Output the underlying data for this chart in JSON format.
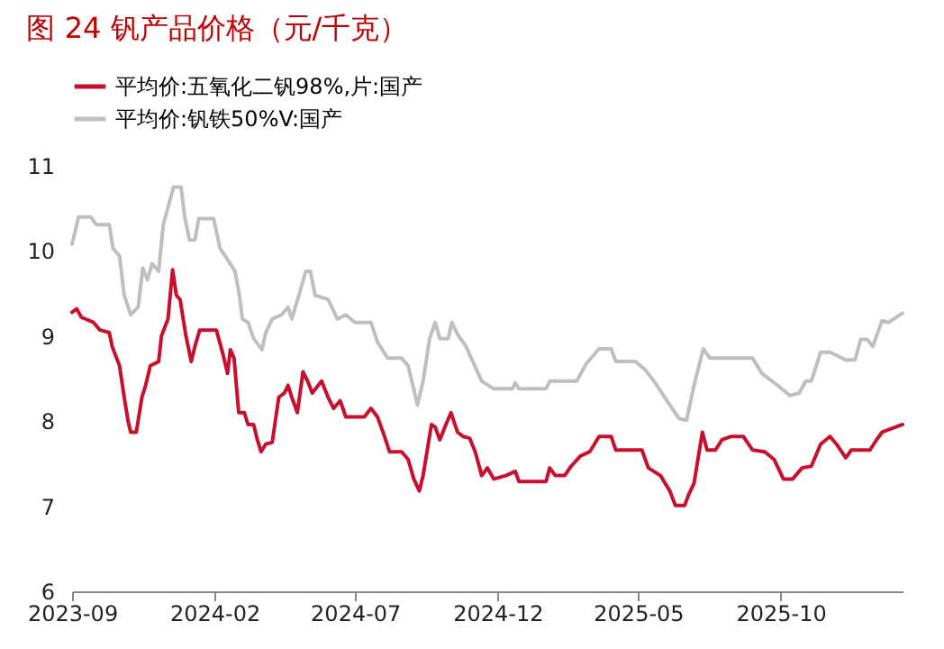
{
  "chart_data": {
    "type": "line",
    "title": "图 24 钒产品价格（元/千克）",
    "xlim": [
      "2023-09-01",
      "2026-02-09"
    ],
    "xticks": [
      "2023-09",
      "2024-02",
      "2024-07",
      "2024-12",
      "2025-05",
      "2025-10"
    ],
    "ylim": [
      6,
      11
    ],
    "yticks": [
      6,
      7,
      8,
      9,
      10,
      11
    ],
    "grid": false,
    "legend": "top",
    "marker": "none",
    "line_style": "solid",
    "series": [
      {
        "name": "平均价:五氧化二钒98%,片:国产",
        "color": "#c8102e",
        "x": [
          "2023-09-01",
          "2023-09-06",
          "2023-09-11",
          "2023-09-24",
          "2023-10-01",
          "2023-10-11",
          "2023-10-14",
          "2023-10-22",
          "2023-10-27",
          "2023-10-31",
          "2023-11-03",
          "2023-11-09",
          "2023-11-15",
          "2023-11-19",
          "2023-11-24",
          "2023-12-03",
          "2023-12-06",
          "2023-12-13",
          "2023-12-18",
          "2023-12-22",
          "2023-12-26",
          "2024-01-01",
          "2024-01-07",
          "2024-01-11",
          "2024-01-16",
          "2024-02-03",
          "2024-02-10",
          "2024-02-15",
          "2024-02-18",
          "2024-02-22",
          "2024-02-27",
          "2024-03-04",
          "2024-03-08",
          "2024-03-14",
          "2024-03-18",
          "2024-03-22",
          "2024-03-27",
          "2024-04-03",
          "2024-04-10",
          "2024-04-16",
          "2024-04-20",
          "2024-04-24",
          "2024-04-30",
          "2024-05-06",
          "2024-05-11",
          "2024-05-16",
          "2024-05-26",
          "2024-06-02",
          "2024-06-08",
          "2024-06-15",
          "2024-06-21",
          "2024-07-11",
          "2024-07-18",
          "2024-07-25",
          "2024-07-31",
          "2024-08-07",
          "2024-08-20",
          "2024-08-27",
          "2024-09-02",
          "2024-09-08",
          "2024-09-12",
          "2024-09-21",
          "2024-09-25",
          "2024-09-30",
          "2024-10-05",
          "2024-10-12",
          "2024-10-19",
          "2024-10-25",
          "2024-11-01",
          "2024-11-07",
          "2024-11-14",
          "2024-11-20",
          "2024-11-27",
          "2024-12-10",
          "2024-12-20",
          "2024-12-24",
          "2025-01-22",
          "2025-01-26",
          "2025-02-01",
          "2025-02-11",
          "2025-02-18",
          "2025-02-28",
          "2025-03-10",
          "2025-03-20",
          "2025-04-02",
          "2025-04-07",
          "2025-05-05",
          "2025-05-12",
          "2025-05-25",
          "2025-06-04",
          "2025-06-10",
          "2025-06-20",
          "2025-06-24",
          "2025-06-30",
          "2025-07-09",
          "2025-07-14",
          "2025-07-23",
          "2025-07-30",
          "2025-08-09",
          "2025-08-22",
          "2025-09-01",
          "2025-09-14",
          "2025-09-24",
          "2025-10-04",
          "2025-10-14",
          "2025-10-24",
          "2025-11-03",
          "2025-11-13",
          "2025-11-23",
          "2025-11-30",
          "2025-12-10",
          "2025-12-16",
          "2026-01-05",
          "2026-01-12",
          "2026-01-18",
          "2026-02-09"
        ],
        "values": [
          9.28,
          9.32,
          9.22,
          9.16,
          9.07,
          9.04,
          8.88,
          8.65,
          8.28,
          8.01,
          7.87,
          7.87,
          8.28,
          8.42,
          8.65,
          8.7,
          9.0,
          9.2,
          9.78,
          9.48,
          9.43,
          9.02,
          8.7,
          8.88,
          9.07,
          9.07,
          8.79,
          8.56,
          8.84,
          8.74,
          8.1,
          8.1,
          7.96,
          7.96,
          7.78,
          7.64,
          7.73,
          7.75,
          8.28,
          8.33,
          8.42,
          8.28,
          8.1,
          8.58,
          8.47,
          8.33,
          8.47,
          8.28,
          8.15,
          8.24,
          8.05,
          8.05,
          8.15,
          8.05,
          7.87,
          7.64,
          7.64,
          7.55,
          7.32,
          7.18,
          7.36,
          7.96,
          7.93,
          7.78,
          7.92,
          8.1,
          7.87,
          7.82,
          7.8,
          7.64,
          7.36,
          7.45,
          7.32,
          7.36,
          7.41,
          7.29,
          7.29,
          7.45,
          7.36,
          7.36,
          7.47,
          7.59,
          7.64,
          7.82,
          7.82,
          7.66,
          7.66,
          7.45,
          7.36,
          7.18,
          7.01,
          7.01,
          7.13,
          7.27,
          7.87,
          7.66,
          7.66,
          7.78,
          7.82,
          7.82,
          7.66,
          7.64,
          7.55,
          7.32,
          7.32,
          7.45,
          7.47,
          7.73,
          7.82,
          7.73,
          7.57,
          7.66,
          7.66,
          7.78,
          7.87,
          7.96
        ]
      },
      {
        "name": "平均价:钒铁50%V:国产",
        "color": "#bfbfbf",
        "x": [
          "2023-09-01",
          "2023-09-08",
          "2023-09-21",
          "2023-09-27",
          "2023-10-11",
          "2023-10-15",
          "2023-10-22",
          "2023-10-27",
          "2023-11-03",
          "2023-11-11",
          "2023-11-16",
          "2023-11-21",
          "2023-11-26",
          "2023-12-03",
          "2023-12-08",
          "2023-12-19",
          "2023-12-27",
          "2023-12-31",
          "2024-01-05",
          "2024-01-11",
          "2024-01-15",
          "2024-01-31",
          "2024-02-07",
          "2024-02-15",
          "2024-02-23",
          "2024-02-27",
          "2024-03-02",
          "2024-03-08",
          "2024-03-14",
          "2024-03-23",
          "2024-03-27",
          "2024-04-03",
          "2024-04-13",
          "2024-04-20",
          "2024-04-24",
          "2024-05-03",
          "2024-05-09",
          "2024-05-14",
          "2024-05-19",
          "2024-06-02",
          "2024-06-12",
          "2024-06-21",
          "2024-07-01",
          "2024-07-18",
          "2024-07-25",
          "2024-08-05",
          "2024-08-20",
          "2024-08-27",
          "2024-09-06",
          "2024-09-12",
          "2024-09-19",
          "2024-09-25",
          "2024-09-30",
          "2024-10-09",
          "2024-10-13",
          "2024-10-19",
          "2024-10-28",
          "2024-11-14",
          "2024-11-27",
          "2024-12-17",
          "2024-12-20",
          "2024-12-24",
          "2025-01-22",
          "2025-01-26",
          "2025-02-24",
          "2025-03-06",
          "2025-03-20",
          "2025-04-02",
          "2025-04-07",
          "2025-04-28",
          "2025-05-08",
          "2025-05-18",
          "2025-06-01",
          "2025-06-14",
          "2025-06-22",
          "2025-06-30",
          "2025-07-10",
          "2025-07-17",
          "2025-09-01",
          "2025-09-11",
          "2025-09-28",
          "2025-10-11",
          "2025-10-21",
          "2025-10-28",
          "2025-11-03",
          "2025-11-13",
          "2025-11-23",
          "2025-12-10",
          "2025-12-20",
          "2025-12-26",
          "2026-01-02",
          "2026-01-08",
          "2026-01-18",
          "2026-01-25",
          "2026-02-09"
        ],
        "values": [
          10.08,
          10.4,
          10.4,
          10.31,
          10.31,
          10.03,
          9.94,
          9.48,
          9.25,
          9.34,
          9.8,
          9.66,
          9.85,
          9.76,
          10.31,
          10.75,
          10.75,
          10.4,
          10.13,
          10.13,
          10.38,
          10.38,
          10.03,
          9.9,
          9.76,
          9.53,
          9.2,
          9.16,
          8.97,
          8.84,
          9.04,
          9.2,
          9.25,
          9.34,
          9.2,
          9.53,
          9.76,
          9.76,
          9.48,
          9.43,
          9.2,
          9.25,
          9.16,
          9.16,
          8.93,
          8.74,
          8.74,
          8.65,
          8.19,
          8.47,
          8.97,
          9.16,
          8.97,
          8.97,
          9.16,
          9.02,
          8.88,
          8.47,
          8.38,
          8.38,
          8.45,
          8.38,
          8.38,
          8.47,
          8.47,
          8.67,
          8.85,
          8.85,
          8.7,
          8.7,
          8.61,
          8.47,
          8.24,
          8.03,
          8.01,
          8.42,
          8.85,
          8.74,
          8.74,
          8.56,
          8.42,
          8.3,
          8.33,
          8.47,
          8.47,
          8.81,
          8.81,
          8.72,
          8.72,
          8.96,
          8.96,
          8.88,
          9.18,
          9.16,
          9.27
        ]
      }
    ]
  }
}
